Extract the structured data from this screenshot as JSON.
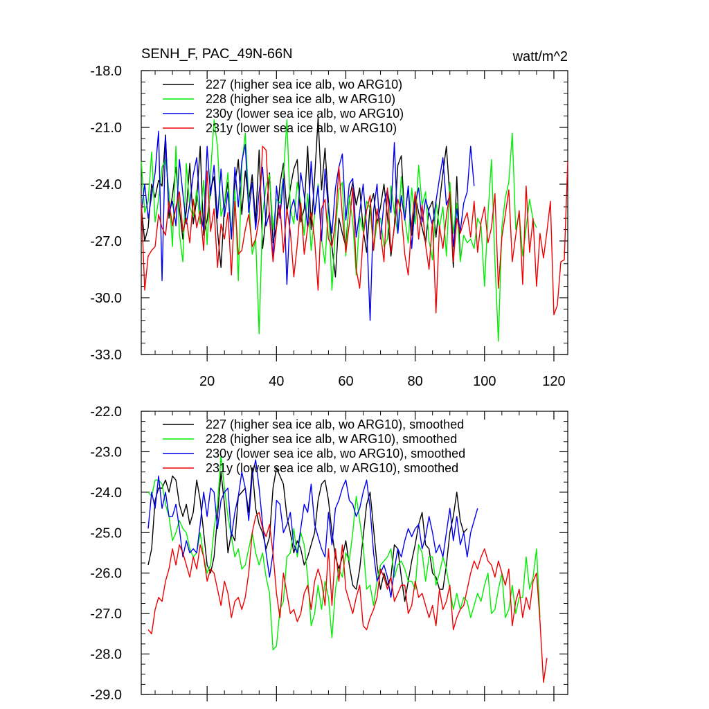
{
  "chart_data": [
    {
      "type": "line",
      "title": "SENH_F, PAC_49N-66N",
      "units": "watt/m^2",
      "xlim": [
        1,
        124
      ],
      "ylim": [
        -33.0,
        -18.0
      ],
      "yticks": [
        -33.0,
        -30.0,
        -27.0,
        -24.0,
        -21.0,
        -18.0
      ],
      "ytick_labels": [
        "-33.0",
        "-30.0",
        "-27.0",
        "-24.0",
        "-21.0",
        "-18.0"
      ],
      "xticks": [
        20,
        40,
        60,
        80,
        100,
        120
      ],
      "xtick_labels": [
        "20",
        "40",
        "60",
        "80",
        "100",
        "120"
      ],
      "legend_position": "top-left",
      "series": [
        {
          "name": "227 (higher sea ice alb, wo ARG10)",
          "color": "#000000",
          "x_start": 1,
          "values": [
            -25.2,
            -27.0,
            -26.3,
            -24.0,
            -24.7,
            -23.8,
            -24.1,
            -21.4,
            -25.8,
            -24.6,
            -23.1,
            -25.3,
            -26.9,
            -25.4,
            -22.9,
            -26.1,
            -24.8,
            -22.0,
            -26.7,
            -25.9,
            -24.3,
            -23.6,
            -26.5,
            -28.4,
            -25.1,
            -23.9,
            -26.8,
            -24.0,
            -22.7,
            -25.6,
            -23.3,
            -24.9,
            -23.5,
            -26.0,
            -22.2,
            -27.4,
            -25.7,
            -23.4,
            -27.1,
            -26.2,
            -24.0,
            -22.9,
            -25.5,
            -24.2,
            -23.2,
            -22.7,
            -26.0,
            -25.3,
            -22.0,
            -26.4,
            -23.7,
            -20.5,
            -24.3,
            -22.1,
            -25.0,
            -27.3,
            -28.9,
            -25.8,
            -26.6,
            -27.3,
            -24.8,
            -23.9,
            -25.1,
            -24.2,
            -26.4,
            -27.6,
            -25.1,
            -24.5,
            -26.1,
            -25.2,
            -24.0,
            -25.7,
            -27.8,
            -26.2,
            -23.0,
            -22.5,
            -25.9,
            -24.1,
            -26.7,
            -24.6,
            -25.5,
            -26.3,
            -27.1,
            -25.3,
            -24.9,
            -26.8,
            -25.0,
            -23.4,
            -22.0,
            -24.7,
            -28.4,
            -23.6,
            -27.9
          ]
        },
        {
          "name": "228 (higher sea ice alb, w ARG10)",
          "color": "#00ee00",
          "x_start": 1,
          "values": [
            -22.8,
            -25.5,
            -24.9,
            -22.3,
            -26.0,
            -24.8,
            -23.1,
            -22.7,
            -24.4,
            -27.3,
            -22.0,
            -26.6,
            -28.1,
            -22.9,
            -25.2,
            -25.7,
            -24.3,
            -26.1,
            -23.8,
            -27.2,
            -23.4,
            -20.6,
            -22.0,
            -25.7,
            -25.0,
            -23.4,
            -26.9,
            -24.3,
            -29.1,
            -23.0,
            -21.3,
            -24.8,
            -27.7,
            -26.9,
            -31.9,
            -25.6,
            -24.1,
            -23.5,
            -26.4,
            -24.8,
            -25.0,
            -23.6,
            -20.6,
            -25.3,
            -26.1,
            -23.9,
            -25.0,
            -26.7,
            -24.5,
            -27.5,
            -25.6,
            -24.0,
            -26.9,
            -28.2,
            -25.0,
            -29.6,
            -26.4,
            -24.3,
            -23.9,
            -27.8,
            -24.6,
            -26.0,
            -28.8,
            -25.7,
            -26.5,
            -24.9,
            -25.3,
            -27.5,
            -26.0,
            -25.8,
            -27.3,
            -26.9,
            -24.1,
            -25.5,
            -26.6,
            -23.6,
            -25.8,
            -27.1,
            -24.2,
            -26.1,
            -23.0,
            -25.1,
            -24.4,
            -27.0,
            -28.0,
            -24.9,
            -26.3,
            -25.2,
            -27.8,
            -23.9,
            -26.6,
            -25.0,
            -28.1,
            -26.7,
            -27.1,
            -26.9,
            -27.4,
            -25.8,
            -26.2,
            -29.4,
            -25.6,
            -22.7,
            -28.1,
            -32.3,
            -26.3,
            -24.7,
            -23.9,
            -21.3,
            -26.4,
            -25.5,
            -27.8,
            -26.3,
            -24.8,
            -25.9,
            -26.3
          ]
        },
        {
          "name": "230y (lower sea ice alb, wo ARG10)",
          "color": "#0000ee",
          "x_start": 1,
          "values": [
            -25.5,
            -24.0,
            -25.8,
            -24.6,
            -23.4,
            -21.2,
            -29.1,
            -21.5,
            -25.5,
            -24.9,
            -26.2,
            -22.7,
            -24.5,
            -26.1,
            -25.0,
            -23.5,
            -22.6,
            -25.5,
            -26.4,
            -22.0,
            -24.6,
            -23.0,
            -25.8,
            -23.2,
            -25.7,
            -24.4,
            -26.9,
            -23.1,
            -25.2,
            -22.8,
            -21.9,
            -25.5,
            -23.9,
            -26.4,
            -24.4,
            -23.1,
            -26.2,
            -25.5,
            -27.9,
            -24.1,
            -25.8,
            -23.7,
            -29.3,
            -25.4,
            -24.8,
            -25.9,
            -23.4,
            -24.6,
            -26.3,
            -22.8,
            -25.6,
            -24.1,
            -27.0,
            -23.2,
            -25.4,
            -26.6,
            -24.2,
            -23.1,
            -22.4,
            -25.9,
            -24.0,
            -23.7,
            -26.8,
            -25.5,
            -24.0,
            -26.3,
            -31.2,
            -25.4,
            -24.0,
            -26.9,
            -25.0,
            -24.3,
            -25.5,
            -21.8,
            -26.6,
            -24.6,
            -25.9,
            -24.1,
            -27.4,
            -25.0,
            -24.2,
            -26.0,
            -24.8,
            -25.5,
            -26.2,
            -24.9,
            -23.7,
            -22.6,
            -25.1,
            -24.6,
            -27.3,
            -25.3,
            -26.5,
            -25.0,
            -24.4,
            -22.0,
            -24.1
          ]
        },
        {
          "name": "231y (lower sea ice alb, w ARG10)",
          "color": "#ee0000",
          "x_start": 1,
          "values": [
            -25.0,
            -29.6,
            -27.8,
            -27.5,
            -27.3,
            -25.6,
            -26.3,
            -26.7,
            -24.9,
            -26.2,
            -25.2,
            -24.4,
            -26.5,
            -25.8,
            -27.1,
            -24.8,
            -26.3,
            -25.4,
            -27.5,
            -23.3,
            -26.5,
            -25.3,
            -28.4,
            -26.1,
            -26.9,
            -25.5,
            -28.8,
            -24.9,
            -27.7,
            -27.5,
            -26.4,
            -25.6,
            -27.3,
            -26.9,
            -25.8,
            -22.0,
            -22.2,
            -25.8,
            -28.1,
            -26.3,
            -25.1,
            -27.6,
            -25.3,
            -26.5,
            -28.9,
            -27.2,
            -25.0,
            -27.7,
            -26.3,
            -25.5,
            -26.9,
            -29.6,
            -25.3,
            -24.8,
            -26.9,
            -27.3,
            -26.0,
            -23.1,
            -25.7,
            -27.6,
            -26.1,
            -24.2,
            -28.5,
            -29.5,
            -26.8,
            -25.4,
            -24.6,
            -27.5,
            -25.3,
            -26.6,
            -28.1,
            -24.2,
            -27.6,
            -26.3,
            -24.8,
            -25.5,
            -27.7,
            -28.8,
            -26.1,
            -24.4,
            -26.9,
            -25.1,
            -27.2,
            -28.5,
            -25.9,
            -30.8,
            -26.2,
            -27.4,
            -25.7,
            -24.4,
            -28.1,
            -25.8,
            -26.6,
            -26.0,
            -25.5,
            -26.8,
            -24.9,
            -27.6,
            -26.0,
            -25.2,
            -27.1,
            -26.3,
            -24.5,
            -29.5,
            -26.8,
            -25.6,
            -24.3,
            -28.1,
            -26.7,
            -25.4,
            -29.3,
            -24.1,
            -27.6,
            -25.8,
            -29.4,
            -26.6,
            -27.9,
            -26.5,
            -24.9,
            -30.9,
            -30.4,
            -28.1,
            -28.0,
            -22.8
          ]
        }
      ]
    },
    {
      "type": "line",
      "title": "",
      "ylim": [
        -29.0,
        -22.0
      ],
      "yticks": [
        -29.0,
        -28.0,
        -27.0,
        -26.0,
        -25.0,
        -24.0,
        -23.0,
        -22.0
      ],
      "ytick_labels": [
        "-29.0",
        "-28.0",
        "-27.0",
        "-26.0",
        "-25.0",
        "-24.0",
        "-23.0",
        "-22.0"
      ],
      "xlim": [
        1,
        124
      ],
      "xticks": [
        20,
        40,
        60,
        80,
        100,
        120
      ],
      "xtick_labels": [],
      "legend_position": "top-left",
      "series": [
        {
          "name": "227 (higher sea ice alb, wo ARG10), smoothed",
          "color": "#000000",
          "x_start": 3,
          "values": [
            -25.8,
            -25.4,
            -24.2,
            -23.9,
            -23.9,
            -23.7,
            -24.0,
            -23.6,
            -23.7,
            -24.3,
            -24.6,
            -24.3,
            -24.8,
            -24.5,
            -23.7,
            -24.2,
            -25.0,
            -25.8,
            -26.0,
            -25.6,
            -24.6,
            -23.5,
            -24.3,
            -25.5,
            -25.0,
            -25.2,
            -24.1,
            -24.0,
            -23.9,
            -24.5,
            -23.4,
            -24.4,
            -24.8,
            -25.0,
            -25.4,
            -25.1,
            -23.9,
            -23.4,
            -23.6,
            -23.8,
            -24.6,
            -25.0,
            -25.5,
            -25.2,
            -25.4,
            -25.8,
            -25.6,
            -25.3,
            -25.0,
            -24.2,
            -23.8,
            -23.7,
            -24.2,
            -25.0,
            -25.6,
            -25.9,
            -25.6,
            -25.2,
            -25.8,
            -26.3,
            -26.4,
            -25.9,
            -25.1,
            -24.3,
            -24.0,
            -24.9,
            -25.8,
            -26.4,
            -26.0,
            -26.3,
            -26.1,
            -25.3,
            -25.4,
            -26.1,
            -26.7,
            -26.2,
            -25.7,
            -25.3,
            -24.8,
            -24.5,
            -25.3,
            -25.4,
            -26.0,
            -26.1,
            -26.4,
            -26.4,
            -25.8,
            -25.0,
            -24.6,
            -24.0,
            -24.7,
            -25.0,
            -24.9
          ]
        },
        {
          "name": "228 (higher sea ice alb, w ARG10), smoothed",
          "color": "#00ee00",
          "x_start": 3,
          "values": [
            -24.0,
            -24.1,
            -23.7,
            -23.7,
            -23.8,
            -24.3,
            -24.6,
            -25.2,
            -25.0,
            -24.7,
            -24.9,
            -25.0,
            -25.4,
            -25.6,
            -25.5,
            -25.0,
            -25.6,
            -26.0,
            -25.8,
            -24.9,
            -24.3,
            -23.1,
            -23.9,
            -24.6,
            -25.1,
            -25.6,
            -25.4,
            -25.9,
            -25.8,
            -25.4,
            -25.0,
            -25.5,
            -25.8,
            -25.5,
            -26.1,
            -26.5,
            -27.9,
            -27.8,
            -26.9,
            -26.7,
            -25.6,
            -25.5,
            -24.9,
            -25.6,
            -25.0,
            -25.3,
            -26.1,
            -27.3,
            -27.0,
            -26.3,
            -26.9,
            -26.2,
            -26.6,
            -27.6,
            -26.4,
            -25.9,
            -26.1,
            -25.5,
            -25.7,
            -25.0,
            -24.1,
            -24.7,
            -25.3,
            -26.4,
            -26.3,
            -26.8,
            -26.2,
            -25.8,
            -25.7,
            -25.6,
            -25.4,
            -26.1,
            -25.8,
            -25.7,
            -25.9,
            -26.2,
            -26.2,
            -26.4,
            -25.3,
            -25.5,
            -26.2,
            -25.6,
            -25.6,
            -26.3,
            -26.0,
            -25.6,
            -25.9,
            -26.4,
            -26.9,
            -26.5,
            -26.9,
            -26.6,
            -26.7,
            -27.1,
            -26.8,
            -26.5,
            -26.7,
            -26.3,
            -26.0,
            -27.0,
            -26.9,
            -26.4,
            -26.0,
            -27.1,
            -26.9,
            -26.3,
            -27.0,
            -26.6,
            -26.6,
            -25.6,
            -26.4,
            -26.1,
            -25.4,
            -27.1
          ]
        },
        {
          "name": "230y (lower sea ice alb, wo ARG10), smoothed",
          "color": "#0000ee",
          "x_start": 3,
          "values": [
            -24.9,
            -24.0,
            -24.4,
            -23.6,
            -24.4,
            -24.0,
            -24.6,
            -24.6,
            -24.3,
            -24.9,
            -25.6,
            -25.2,
            -25.5,
            -25.4,
            -25.5,
            -24.8,
            -24.0,
            -24.6,
            -23.9,
            -24.0,
            -24.9,
            -24.2,
            -24.0,
            -23.9,
            -25.1,
            -24.5,
            -24.1,
            -23.5,
            -23.9,
            -24.7,
            -23.6,
            -23.2,
            -23.9,
            -24.8,
            -25.5,
            -26.1,
            -25.5,
            -24.2,
            -24.3,
            -25.0,
            -24.8,
            -24.5,
            -25.3,
            -25.5,
            -24.9,
            -24.3,
            -24.5,
            -23.8,
            -24.8,
            -25.1,
            -25.4,
            -25.6,
            -24.5,
            -25.3,
            -24.4,
            -24.2,
            -23.9,
            -23.7,
            -24.2,
            -24.3,
            -24.6,
            -24.4,
            -24.0,
            -23.7,
            -24.4,
            -25.5,
            -26.2,
            -26.0,
            -25.8,
            -26.1,
            -26.6,
            -25.9,
            -25.4,
            -25.6,
            -25.2,
            -24.9,
            -25.1,
            -24.9,
            -24.8,
            -25.4,
            -25.1,
            -24.6,
            -25.0,
            -25.5,
            -25.3,
            -25.6,
            -25.0,
            -24.4,
            -25.2,
            -24.6,
            -25.3,
            -25.0,
            -25.6,
            -25.0,
            -24.7,
            -24.4
          ]
        },
        {
          "name": "231y (lower sea ice alb, w ARG10), smoothed",
          "color": "#ee0000",
          "x_start": 3,
          "values": [
            -27.4,
            -27.5,
            -26.9,
            -26.6,
            -26.7,
            -26.2,
            -25.9,
            -25.4,
            -25.8,
            -25.3,
            -25.5,
            -25.8,
            -26.1,
            -25.6,
            -25.9,
            -25.3,
            -25.6,
            -26.2,
            -25.9,
            -26.0,
            -26.4,
            -26.8,
            -26.2,
            -26.5,
            -27.1,
            -26.7,
            -26.6,
            -26.9,
            -26.6,
            -26.0,
            -25.0,
            -24.6,
            -24.5,
            -24.9,
            -25.1,
            -24.8,
            -25.5,
            -26.5,
            -27.1,
            -26.0,
            -26.5,
            -27.0,
            -26.9,
            -27.2,
            -27.0,
            -26.5,
            -26.3,
            -26.9,
            -26.2,
            -25.9,
            -26.2,
            -26.8,
            -25.4,
            -26.8,
            -25.4,
            -26.2,
            -25.3,
            -26.4,
            -26.7,
            -27.0,
            -26.6,
            -26.3,
            -27.3,
            -27.4,
            -27.1,
            -26.9,
            -26.6,
            -25.9,
            -26.1,
            -26.4,
            -26.1,
            -26.7,
            -26.5,
            -26.3,
            -26.3,
            -27.0,
            -26.8,
            -26.2,
            -26.6,
            -26.5,
            -26.8,
            -27.1,
            -26.8,
            -27.3,
            -26.4,
            -26.9,
            -26.7,
            -26.3,
            -27.4,
            -27.1,
            -26.9,
            -26.8,
            -26.4,
            -26.0,
            -25.7,
            -25.9,
            -25.6,
            -25.4,
            -25.7,
            -25.8,
            -26.1,
            -25.7,
            -26.0,
            -26.3,
            -25.9,
            -27.3,
            -26.7,
            -26.4,
            -27.1,
            -26.6,
            -26.9,
            -26.2,
            -26.0,
            -27.2,
            -28.7,
            -28.1
          ]
        }
      ]
    }
  ]
}
